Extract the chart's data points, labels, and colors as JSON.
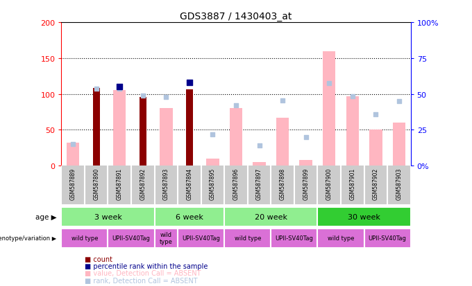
{
  "title": "GDS3887 / 1430403_at",
  "samples": [
    "GSM587889",
    "GSM587890",
    "GSM587891",
    "GSM587892",
    "GSM587893",
    "GSM587894",
    "GSM587895",
    "GSM587896",
    "GSM587897",
    "GSM587898",
    "GSM587899",
    "GSM587900",
    "GSM587901",
    "GSM587902",
    "GSM587903"
  ],
  "count_values": [
    null,
    108,
    null,
    96,
    null,
    106,
    null,
    null,
    null,
    null,
    null,
    null,
    null,
    null,
    null
  ],
  "percentile_values": [
    null,
    null,
    null,
    null,
    null,
    null,
    null,
    null,
    null,
    null,
    null,
    null,
    null,
    null,
    null
  ],
  "blue_scatter": [
    null,
    null,
    110,
    null,
    null,
    116,
    null,
    null,
    null,
    null,
    null,
    null,
    null,
    null,
    null
  ],
  "value_absent": [
    32,
    null,
    105,
    null,
    80,
    null,
    10,
    80,
    5,
    67,
    8,
    160,
    97,
    50,
    60
  ],
  "rank_absent": [
    30,
    107,
    107,
    98,
    96,
    null,
    44,
    84,
    28,
    91,
    40,
    115,
    97,
    72,
    90
  ],
  "ylim": [
    0,
    200
  ],
  "yticks": [
    0,
    50,
    100,
    150,
    200
  ],
  "y2ticks": [
    0,
    25,
    50,
    75,
    100
  ],
  "y2ticklabels": [
    "0%",
    "25",
    "50",
    "75",
    "100%"
  ],
  "grid_lines": [
    50,
    100,
    150
  ],
  "color_count": "#8b0000",
  "color_percentile": "#00008b",
  "color_value_absent": "#ffb6c1",
  "color_rank_absent": "#b0c4de",
  "age_groups": [
    {
      "label": "3 week",
      "start": 0,
      "end": 4,
      "color": "#90ee90"
    },
    {
      "label": "6 week",
      "start": 4,
      "end": 7,
      "color": "#90ee90"
    },
    {
      "label": "20 week",
      "start": 7,
      "end": 11,
      "color": "#90ee90"
    },
    {
      "label": "30 week",
      "start": 11,
      "end": 15,
      "color": "#32cd32"
    }
  ],
  "geno_groups": [
    {
      "label": "wild type",
      "start": 0,
      "end": 2,
      "color": "#da70d6"
    },
    {
      "label": "UPII-SV40Tag",
      "start": 2,
      "end": 4,
      "color": "#da70d6"
    },
    {
      "label": "wild\ntype",
      "start": 4,
      "end": 5,
      "color": "#da70d6"
    },
    {
      "label": "UPII-SV40Tag",
      "start": 5,
      "end": 7,
      "color": "#da70d6"
    },
    {
      "label": "wild type",
      "start": 7,
      "end": 9,
      "color": "#da70d6"
    },
    {
      "label": "UPII-SV40Tag",
      "start": 9,
      "end": 11,
      "color": "#da70d6"
    },
    {
      "label": "wild type",
      "start": 11,
      "end": 13,
      "color": "#da70d6"
    },
    {
      "label": "UPII-SV40Tag",
      "start": 13,
      "end": 15,
      "color": "#da70d6"
    }
  ]
}
